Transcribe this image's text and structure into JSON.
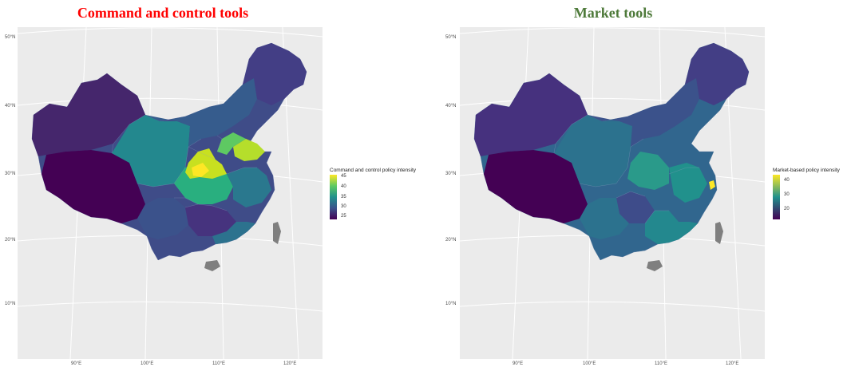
{
  "panels": [
    {
      "title": "Command and control tools",
      "title_color": "#ff0000",
      "lat_labels": [
        "50°N",
        "40°N",
        "30°N",
        "20°N",
        "10°N"
      ],
      "lon_labels": [
        "90°E",
        "100°E",
        "110°E",
        "120°E"
      ],
      "legend": {
        "title": "Command and control policy intensity",
        "labels": [
          "45",
          "40",
          "35",
          "30",
          "25"
        ],
        "colors": [
          "#fde725",
          "#5ec962",
          "#21918c",
          "#3b528b",
          "#440154"
        ]
      }
    },
    {
      "title": "Market tools",
      "title_color": "#4e7a3a",
      "lat_labels": [
        "50°N",
        "40°N",
        "30°N",
        "20°N",
        "10°N"
      ],
      "lon_labels": [
        "90°E",
        "100°E",
        "110°E",
        "120°E"
      ],
      "legend": {
        "title": "Market-based policy intensity",
        "labels": [
          "40",
          "30",
          "20"
        ],
        "colors": [
          "#fde725",
          "#21918c",
          "#440154"
        ]
      }
    }
  ]
}
